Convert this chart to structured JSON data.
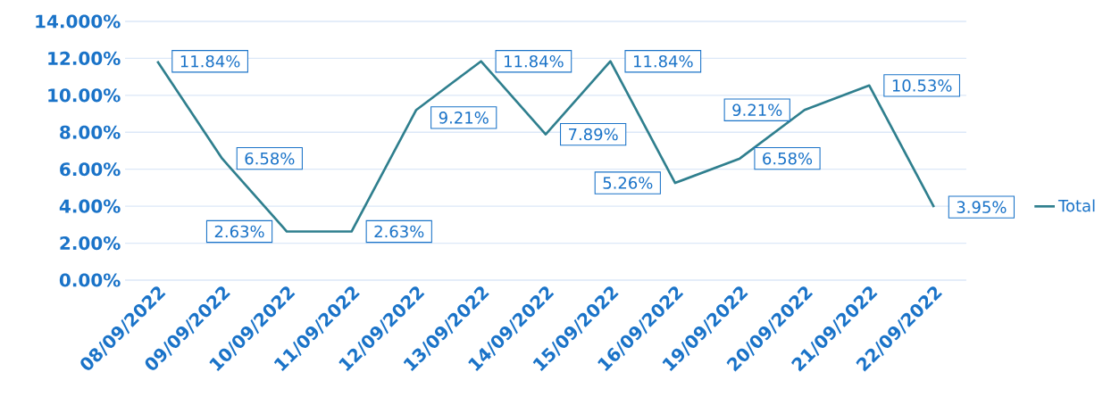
{
  "chart_data": {
    "type": "line",
    "categories": [
      "08/09/2022",
      "09/09/2022",
      "10/09/2022",
      "11/09/2022",
      "12/09/2022",
      "13/09/2022",
      "14/09/2022",
      "15/09/2022",
      "16/09/2022",
      "19/09/2022",
      "20/09/2022",
      "21/09/2022",
      "22/09/2022"
    ],
    "series": [
      {
        "name": "Total",
        "color": "#2f7f8e",
        "values": [
          11.84,
          6.58,
          2.63,
          2.63,
          9.21,
          11.84,
          7.89,
          11.84,
          5.26,
          6.58,
          9.21,
          10.53,
          3.95
        ],
        "value_labels": [
          "11.84%",
          "6.58%",
          "2.63%",
          "2.63%",
          "9.21%",
          "11.84%",
          "7.89%",
          "11.84%",
          "5.26%",
          "6.58%",
          "9.21%",
          "10.53%",
          "3.95%"
        ]
      }
    ],
    "ylim": [
      0,
      14
    ],
    "yticks": [
      {
        "value": 0,
        "label": "0.00%"
      },
      {
        "value": 2,
        "label": "2.00%"
      },
      {
        "value": 4,
        "label": "4.00%"
      },
      {
        "value": 6,
        "label": "6.00%"
      },
      {
        "value": 8,
        "label": "8.00%"
      },
      {
        "value": 10,
        "label": "10.00%"
      },
      {
        "value": 12,
        "label": "12.00%"
      },
      {
        "value": 14,
        "label": "14.000%"
      }
    ],
    "grid": "y",
    "legend": "right",
    "marker": "none",
    "line_style": "solid"
  }
}
